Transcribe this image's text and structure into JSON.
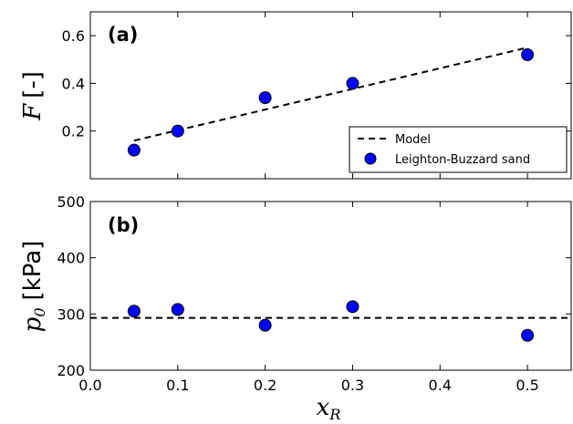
{
  "chart_data": [
    {
      "panel": "(a)",
      "type": "scatter",
      "x": [
        0.05,
        0.1,
        0.2,
        0.3,
        0.5
      ],
      "series": [
        {
          "name": "Leighton-Buzzard sand",
          "type": "scatter",
          "x": [
            0.05,
            0.1,
            0.2,
            0.3,
            0.5
          ],
          "y": [
            0.12,
            0.2,
            0.34,
            0.4,
            0.52
          ],
          "color": "#0000ff"
        },
        {
          "name": "Model",
          "type": "line",
          "style": "dashed",
          "x": [
            0.05,
            0.5
          ],
          "y": [
            0.16,
            0.55
          ],
          "color": "#000000"
        }
      ],
      "ylabel_symbol": "F",
      "ylabel_unit": "[-]",
      "xlim": [
        0.0,
        0.55
      ],
      "ylim": [
        0.0,
        0.7
      ],
      "yticks": [
        "0.2",
        "0.4",
        "0.6"
      ],
      "legend": "lower-right",
      "grid": false
    },
    {
      "panel": "(b)",
      "type": "scatter",
      "series": [
        {
          "name": "Leighton-Buzzard sand",
          "type": "scatter",
          "x": [
            0.05,
            0.1,
            0.2,
            0.3,
            0.5
          ],
          "y": [
            305,
            308,
            280,
            313,
            262
          ],
          "color": "#0000ff"
        },
        {
          "name": "Model",
          "type": "line",
          "style": "dashed",
          "x": [
            0.0,
            0.55
          ],
          "y": [
            293,
            293
          ],
          "color": "#000000"
        }
      ],
      "ylabel_symbol": "p",
      "ylabel_sub": "0",
      "ylabel_unit": "[kPa]",
      "xlabel_symbol": "x",
      "xlabel_sub": "R",
      "xlim": [
        0.0,
        0.55
      ],
      "ylim": [
        200,
        500
      ],
      "yticks": [
        "200",
        "300",
        "400",
        "500"
      ],
      "xticks": [
        "0.0",
        "0.1",
        "0.2",
        "0.3",
        "0.4",
        "0.5"
      ],
      "grid": false
    }
  ]
}
